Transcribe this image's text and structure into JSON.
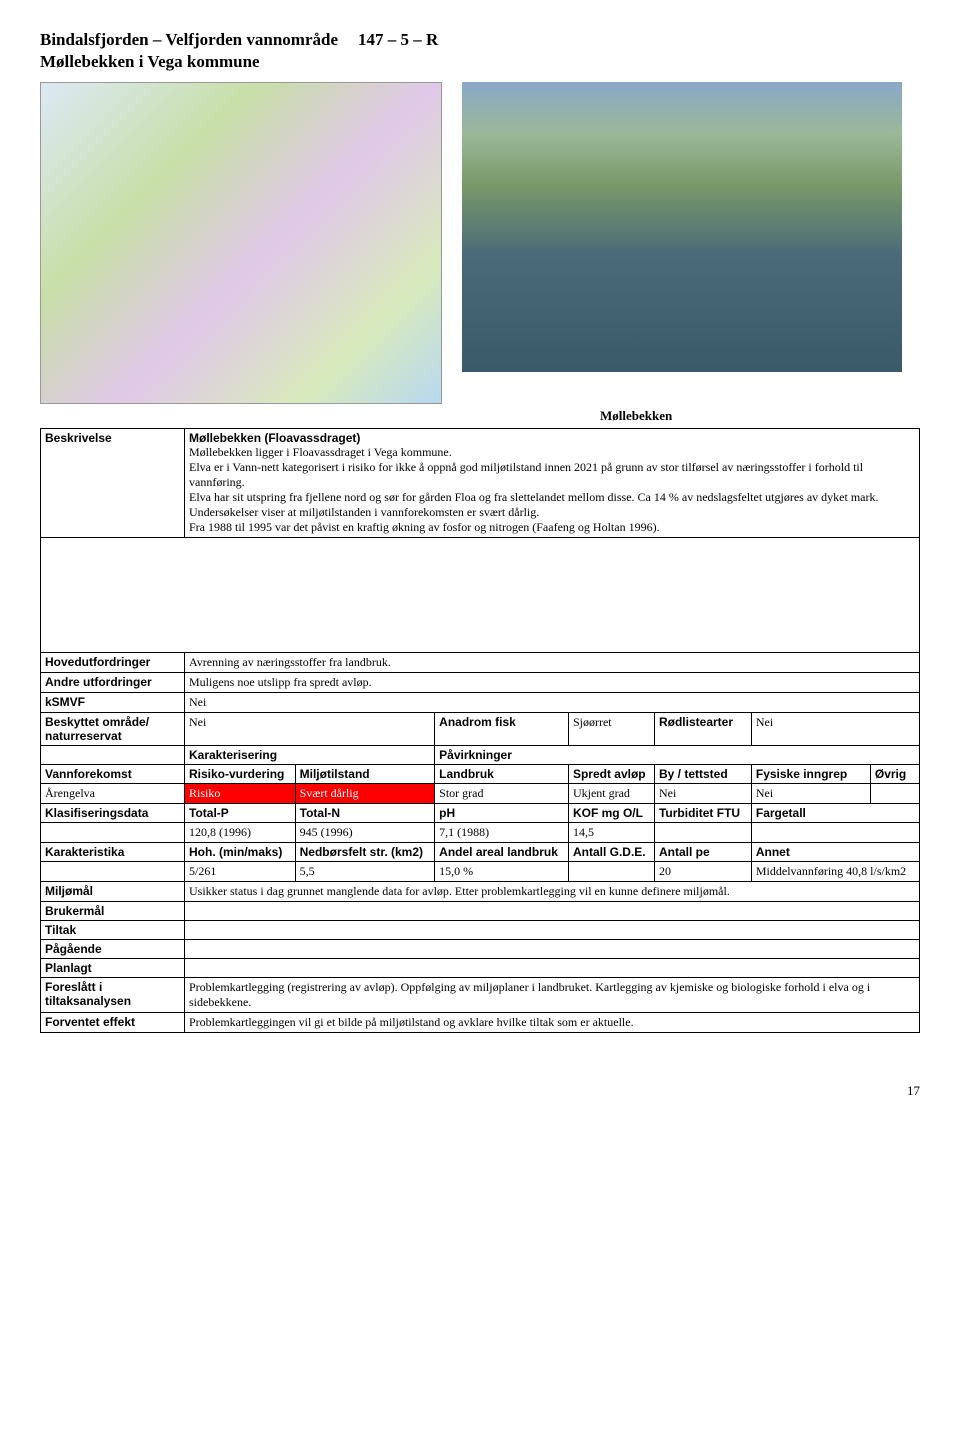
{
  "header": {
    "title": "Bindalsfjorden – Velfjorden vannområde",
    "code": "147 – 5 – R",
    "subtitle": "Møllebekken i Vega kommune"
  },
  "caption_right": "Møllebekken",
  "desc": {
    "label": "Beskrivelse",
    "source": "Møllebekken (Floavassdraget)",
    "p1": "Møllebekken ligger i Floavassdraget i Vega kommune.",
    "p2": "Elva er i Vann-nett kategorisert i risiko for ikke å oppnå god miljøtilstand innen 2021 på grunn av stor tilførsel av næringsstoffer i forhold til vannføring.",
    "p3": "Elva har sit utspring fra fjellene nord og sør for gården Floa og fra slettelandet mellom disse. Ca 14 % av nedslagsfeltet utgjøres av dyket mark.",
    "p4": "Undersøkelser viser at miljøtilstanden i vannforekomsten er svært dårlig.",
    "p5": "Fra 1988 til 1995 var det påvist en kraftig økning av fosfor og nitrogen (Faafeng og Holtan 1996)."
  },
  "rows": {
    "hovedutfordringer": {
      "label": "Hovedutfordringer",
      "val": "Avrenning av næringsstoffer fra landbruk."
    },
    "andre": {
      "label": "Andre utfordringer",
      "val": "Muligens noe utslipp fra spredt avløp."
    },
    "ksmvf": {
      "label": "kSMVF",
      "val": "Nei"
    },
    "beskyttet": {
      "label": "Beskyttet område/ naturreservat",
      "val": "Nei",
      "anadrom_label": "Anadrom fisk",
      "anadrom_val": "Sjøørret",
      "rodliste_label": "Rødlistearter",
      "rodliste_val": "Nei"
    },
    "karakterisering": "Karakterisering",
    "pavirkninger": "Påvirkninger",
    "vannforekomst": {
      "label": "Vannforekomst",
      "risiko_h": "Risiko-vurdering",
      "miljo_h": "Miljøtilstand",
      "landbruk_h": "Landbruk",
      "spredt_h": "Spredt avløp",
      "by_h": "By / tettsted",
      "fysiske_h": "Fysiske inngrep",
      "ovrig_h": "Øvrig"
    },
    "arengelva": {
      "label": "Årengelva",
      "risiko": "Risiko",
      "miljo": "Svært dårlig",
      "landbruk": "Stor grad",
      "spredt": "Ukjent grad",
      "by": "Nei",
      "fysiske": "Nei",
      "ovrig": ""
    },
    "klasdata": {
      "label": "Klasifiseringsdata",
      "tp": "Total-P",
      "tn": "Total-N",
      "ph": "pH",
      "kof": "KOF mg O/L",
      "turb": "Turbiditet FTU",
      "farge": "Fargetall"
    },
    "klasvals": {
      "tp": "120,8 (1996)",
      "tn": "945 (1996)",
      "ph": "7,1 (1988)",
      "kof": "14,5",
      "turb": "",
      "farge": ""
    },
    "karakter": {
      "label": "Karakteristika",
      "hoh": "Hoh. (min/maks)",
      "nedb": "Nedbørsfelt str. (km2)",
      "andel": "Andel areal landbruk",
      "antall_gde": "Antall G.D.E.",
      "antall_pe": "Antall pe",
      "annet": "Annet"
    },
    "karaktervals": {
      "hoh": "5/261",
      "nedb": "5,5",
      "andel": "15,0 %",
      "antall_gde": "",
      "antall_pe": "20",
      "annet": "Middelvannføring 40,8 l/s/km2"
    },
    "miljomal": {
      "label": "Miljømål",
      "val": "Usikker status i dag grunnet manglende data for avløp. Etter problemkartlegging vil en kunne definere miljømål."
    },
    "brukermal": {
      "label": "Brukermål",
      "val": ""
    },
    "tiltak": {
      "label": "Tiltak",
      "val": ""
    },
    "pagaende": {
      "label": "Pågående",
      "val": ""
    },
    "planlagt": {
      "label": "Planlagt",
      "val": ""
    },
    "foreslatt": {
      "label": "Foreslått i tiltaksanalysen",
      "val": "Problemkartlegging (registrering av avløp). Oppfølging av miljøplaner i landbruket. Kartlegging av kjemiske og biologiske forhold i elva og i sidebekkene."
    },
    "forventet": {
      "label": "Forventet effekt",
      "val": "Problemkartleggingen vil gi et bilde på miljøtilstand og avklare hvilke tiltak som er aktuelle."
    }
  },
  "page_number": "17"
}
